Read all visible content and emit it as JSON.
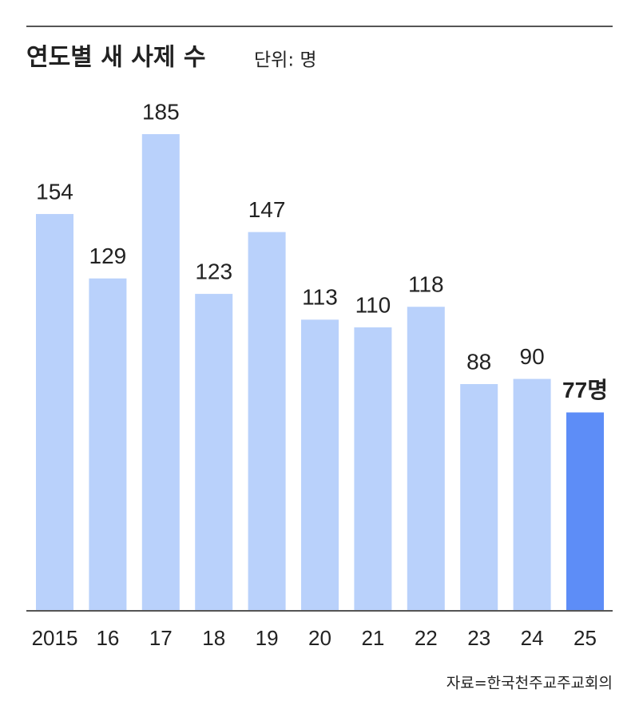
{
  "chart_data": {
    "type": "bar",
    "title": "연도별 새 사제 수",
    "subtitle": "단위: 명",
    "categories": [
      "2015",
      "16",
      "17",
      "18",
      "19",
      "20",
      "21",
      "22",
      "23",
      "24",
      "25"
    ],
    "values": [
      154,
      129,
      185,
      123,
      147,
      113,
      110,
      118,
      88,
      90,
      77
    ],
    "value_labels": [
      "154",
      "129",
      "185",
      "123",
      "147",
      "113",
      "110",
      "118",
      "88",
      "90",
      "77명"
    ],
    "colors": [
      "#b9d1fb",
      "#b9d1fb",
      "#b9d1fb",
      "#b9d1fb",
      "#b9d1fb",
      "#b9d1fb",
      "#b9d1fb",
      "#b9d1fb",
      "#b9d1fb",
      "#b9d1fb",
      "#5d8df7"
    ],
    "source": "자료=한국천주교주교회의"
  }
}
